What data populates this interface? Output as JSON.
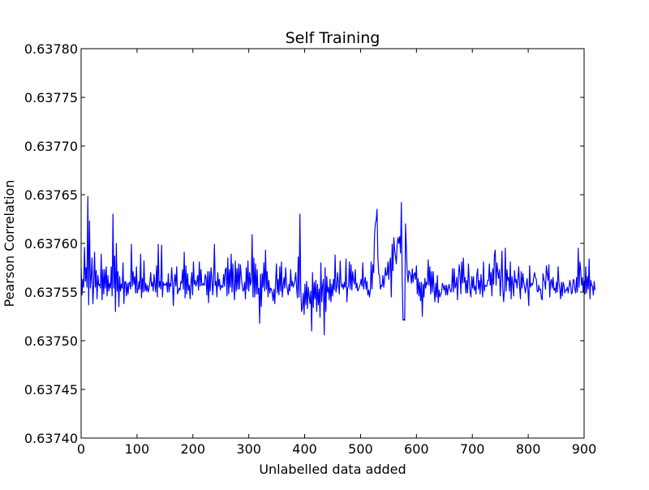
{
  "chart_data": {
    "type": "line",
    "title": "Self Training",
    "xlabel": "Unlabelled data added",
    "ylabel": "Pearson Correlation",
    "xlim": [
      0,
      900
    ],
    "ylim": [
      0.6374,
      0.6378
    ],
    "x_ticks": [
      0,
      100,
      200,
      300,
      400,
      500,
      600,
      700,
      800,
      900
    ],
    "x_tick_labels": [
      "0",
      "100",
      "200",
      "300",
      "400",
      "500",
      "600",
      "700",
      "800",
      "900"
    ],
    "y_ticks": [
      0.6374,
      0.63745,
      0.6375,
      0.63755,
      0.6376,
      0.63765,
      0.6377,
      0.63775,
      0.6378
    ],
    "y_tick_labels": [
      "0.63740",
      "0.63745",
      "0.63750",
      "0.63755",
      "0.63760",
      "0.63765",
      "0.63770",
      "0.63775",
      "0.63780"
    ],
    "grid": false,
    "legend": "none",
    "series": [
      {
        "color": "#0000ff",
        "x_start": 0,
        "x_step": 1.5,
        "values": [
          0.637575,
          0.637547,
          0.637563,
          0.637555,
          0.637596,
          0.637561,
          0.637575,
          0.637555,
          0.637648,
          0.637537,
          0.637623,
          0.637554,
          0.637565,
          0.637585,
          0.637538,
          0.637557,
          0.637591,
          0.637555,
          0.637572,
          0.637543,
          0.637567,
          0.637557,
          0.637558,
          0.637554,
          0.637589,
          0.637542,
          0.637573,
          0.637548,
          0.637573,
          0.637554,
          0.637576,
          0.637546,
          0.637567,
          0.637551,
          0.637559,
          0.637554,
          0.637576,
          0.637546,
          0.63763,
          0.637554,
          0.637587,
          0.63753,
          0.6376,
          0.637551,
          0.637571,
          0.637535,
          0.637566,
          0.637551,
          0.637558,
          0.637554,
          0.63758,
          0.637538,
          0.63756,
          0.637561,
          0.637546,
          0.637559,
          0.637548,
          0.637559,
          0.63756,
          0.637553,
          0.637599,
          0.637556,
          0.637571,
          0.637558,
          0.637566,
          0.637549,
          0.637576,
          0.637549,
          0.637553,
          0.637561,
          0.637553,
          0.637589,
          0.637544,
          0.637564,
          0.63755,
          0.637582,
          0.637551,
          0.637559,
          0.637551,
          0.637557,
          0.63755,
          0.637554,
          0.63756,
          0.63757,
          0.637556,
          0.63756,
          0.637551,
          0.637568,
          0.637558,
          0.63755,
          0.637577,
          0.637545,
          0.637599,
          0.637555,
          0.637561,
          0.637553,
          0.637598,
          0.637545,
          0.63756,
          0.637557,
          0.637558,
          0.637557,
          0.63756,
          0.63755,
          0.637569,
          0.63755,
          0.637559,
          0.637556,
          0.637575,
          0.63756,
          0.637536,
          0.63756,
          0.637568,
          0.637556,
          0.637576,
          0.637548,
          0.637551,
          0.637554,
          0.637552,
          0.637561,
          0.637559,
          0.637573,
          0.637553,
          0.637591,
          0.637544,
          0.637577,
          0.637548,
          0.637569,
          0.637552,
          0.637557,
          0.637543,
          0.637558,
          0.63757,
          0.637547,
          0.637581,
          0.637558,
          0.637562,
          0.637556,
          0.63756,
          0.637567,
          0.637552,
          0.637581,
          0.637556,
          0.637573,
          0.637557,
          0.637557,
          0.637559,
          0.637557,
          0.637568,
          0.637565,
          0.637547,
          0.637571,
          0.637539,
          0.637571,
          0.637551,
          0.637575,
          0.637565,
          0.637547,
          0.637562,
          0.637599,
          0.637557,
          0.637561,
          0.637545,
          0.63757,
          0.637556,
          0.637563,
          0.637552,
          0.637557,
          0.637555,
          0.637555,
          0.637568,
          0.637556,
          0.637573,
          0.637575,
          0.637546,
          0.637585,
          0.637548,
          0.637573,
          0.637555,
          0.637589,
          0.63755,
          0.637579,
          0.637555,
          0.637542,
          0.637582,
          0.637551,
          0.637574,
          0.637553,
          0.637579,
          0.637553,
          0.637578,
          0.637567,
          0.637558,
          0.637551,
          0.637552,
          0.63756,
          0.637543,
          0.637575,
          0.637553,
          0.637582,
          0.637551,
          0.63757,
          0.637557,
          0.637561,
          0.637609,
          0.637545,
          0.637585,
          0.637545,
          0.637579,
          0.637548,
          0.637573,
          0.637548,
          0.637554,
          0.637518,
          0.637568,
          0.637535,
          0.637569,
          0.637555,
          0.63758,
          0.637551,
          0.637593,
          0.637553,
          0.637571,
          0.637545,
          0.637562,
          0.637549,
          0.637554,
          0.637553,
          0.637549,
          0.637541,
          0.637553,
          0.637538,
          0.63756,
          0.637579,
          0.637549,
          0.637563,
          0.637547,
          0.637576,
          0.637551,
          0.637581,
          0.637545,
          0.637556,
          0.637565,
          0.637554,
          0.637575,
          0.637558,
          0.637553,
          0.637547,
          0.637558,
          0.637551,
          0.637573,
          0.637556,
          0.637561,
          0.637555,
          0.637558,
          0.637562,
          0.63757,
          0.637555,
          0.637544,
          0.637586,
          0.637545,
          0.63763,
          0.637553,
          0.63753,
          0.637534,
          0.637549,
          0.637527,
          0.637558,
          0.637537,
          0.637561,
          0.637533,
          0.637555,
          0.637546,
          0.637538,
          0.637551,
          0.63751,
          0.63757,
          0.637534,
          0.63756,
          0.637543,
          0.637562,
          0.63753,
          0.637558,
          0.637537,
          0.637553,
          0.637524,
          0.63758,
          0.63754,
          0.637556,
          0.637563,
          0.637506,
          0.637575,
          0.63753,
          0.637566,
          0.63755,
          0.637555,
          0.637542,
          0.637563,
          0.63754,
          0.637558,
          0.637546,
          0.637563,
          0.637552,
          0.637588,
          0.63755,
          0.637555,
          0.63757,
          0.637558,
          0.637548,
          0.637582,
          0.63756,
          0.637555,
          0.637558,
          0.637553,
          0.63756,
          0.637555,
          0.637584,
          0.63754,
          0.637554,
          0.637556,
          0.637581,
          0.637553,
          0.637578,
          0.637552,
          0.637571,
          0.637562,
          0.637558,
          0.637573,
          0.637554,
          0.637559,
          0.637551,
          0.637553,
          0.637556,
          0.637558,
          0.637563,
          0.637556,
          0.63758,
          0.637553,
          0.637561,
          0.637565,
          0.637553,
          0.637561,
          0.637547,
          0.637552,
          0.637545,
          0.637552,
          0.637581,
          0.637553,
          0.637578,
          0.63757,
          0.637608,
          0.63762,
          0.637624,
          0.637635,
          0.637586,
          0.637569,
          0.637567,
          0.637553,
          0.637557,
          0.637556,
          0.637567,
          0.637555,
          0.637563,
          0.637575,
          0.637567,
          0.637568,
          0.637581,
          0.637563,
          0.637579,
          0.637585,
          0.637545,
          0.637599,
          0.637572,
          0.637606,
          0.637593,
          0.637587,
          0.637579,
          0.637599,
          0.637606,
          0.6376,
          0.637607,
          0.63759,
          0.637642,
          0.637564,
          0.637521,
          0.637522,
          0.637521,
          0.63762,
          0.637595,
          0.63757,
          0.63756,
          0.637572,
          0.63757,
          0.637567,
          0.637559,
          0.637574,
          0.63756,
          0.637568,
          0.63757,
          0.637563,
          0.637577,
          0.637548,
          0.637564,
          0.637546,
          0.63756,
          0.637541,
          0.63756,
          0.637525,
          0.637558,
          0.637545,
          0.637564,
          0.637554,
          0.63756,
          0.637558,
          0.637583,
          0.637557,
          0.637576,
          0.637548,
          0.637571,
          0.63755,
          0.637571,
          0.637553,
          0.63754,
          0.637559,
          0.637545,
          0.637567,
          0.637539,
          0.637552,
          0.637545,
          0.637548,
          0.63755,
          0.637559,
          0.637556,
          0.637552,
          0.637557,
          0.637547,
          0.637557,
          0.637547,
          0.637554,
          0.637558,
          0.637553,
          0.63755,
          0.637553,
          0.637574,
          0.63755,
          0.637574,
          0.637554,
          0.637557,
          0.637565,
          0.637542,
          0.637564,
          0.637578,
          0.637568,
          0.637548,
          0.637581,
          0.637559,
          0.637585,
          0.63756,
          0.637565,
          0.637549,
          0.637562,
          0.637549,
          0.637579,
          0.637562,
          0.63755,
          0.637545,
          0.637566,
          0.637554,
          0.637566,
          0.637552,
          0.637556,
          0.637548,
          0.637567,
          0.637574,
          0.637553,
          0.637562,
          0.637548,
          0.637568,
          0.637557,
          0.637545,
          0.637581,
          0.637551,
          0.637557,
          0.637556,
          0.637556,
          0.637562,
          0.637562,
          0.637579,
          0.637557,
          0.63757,
          0.637546,
          0.637574,
          0.637558,
          0.637588,
          0.637593,
          0.637557,
          0.63758,
          0.637571,
          0.637564,
          0.637573,
          0.637546,
          0.637565,
          0.637592,
          0.637554,
          0.63754,
          0.637553,
          0.637595,
          0.637551,
          0.637573,
          0.637562,
          0.637565,
          0.637551,
          0.637581,
          0.637543,
          0.637566,
          0.637558,
          0.637546,
          0.637572,
          0.63756,
          0.637563,
          0.637554,
          0.637563,
          0.637576,
          0.637557,
          0.637543,
          0.637571,
          0.637554,
          0.637569,
          0.63756,
          0.637555,
          0.637549,
          0.637557,
          0.637564,
          0.637552,
          0.637536,
          0.637577,
          0.637555,
          0.637559,
          0.637557,
          0.637559,
          0.637566,
          0.63757,
          0.637565,
          0.637563,
          0.637551,
          0.63755,
          0.637557,
          0.637552,
          0.637553,
          0.637544,
          0.637542,
          0.637569,
          0.637563,
          0.63756,
          0.637553,
          0.637577,
          0.637569,
          0.637562,
          0.637578,
          0.637545,
          0.63756,
          0.637563,
          0.637554,
          0.637565,
          0.637552,
          0.637554,
          0.637549,
          0.63756,
          0.63755,
          0.637576,
          0.63756,
          0.637553,
          0.637543,
          0.63756,
          0.637546,
          0.63756,
          0.637557,
          0.637549,
          0.637552,
          0.637552,
          0.637555,
          0.637549,
          0.637555,
          0.637562,
          0.637557,
          0.637548,
          0.63755,
          0.637563,
          0.637562,
          0.637553,
          0.637549,
          0.637565,
          0.63755,
          0.637595,
          0.637555,
          0.637581,
          0.637572,
          0.637557,
          0.637565,
          0.63755,
          0.637563,
          0.637548,
          0.637576,
          0.637549,
          0.637566,
          0.637553,
          0.637584,
          0.637543,
          0.637562,
          0.637557,
          0.637556,
          0.637547,
          0.637561,
          0.637552
        ]
      }
    ]
  }
}
